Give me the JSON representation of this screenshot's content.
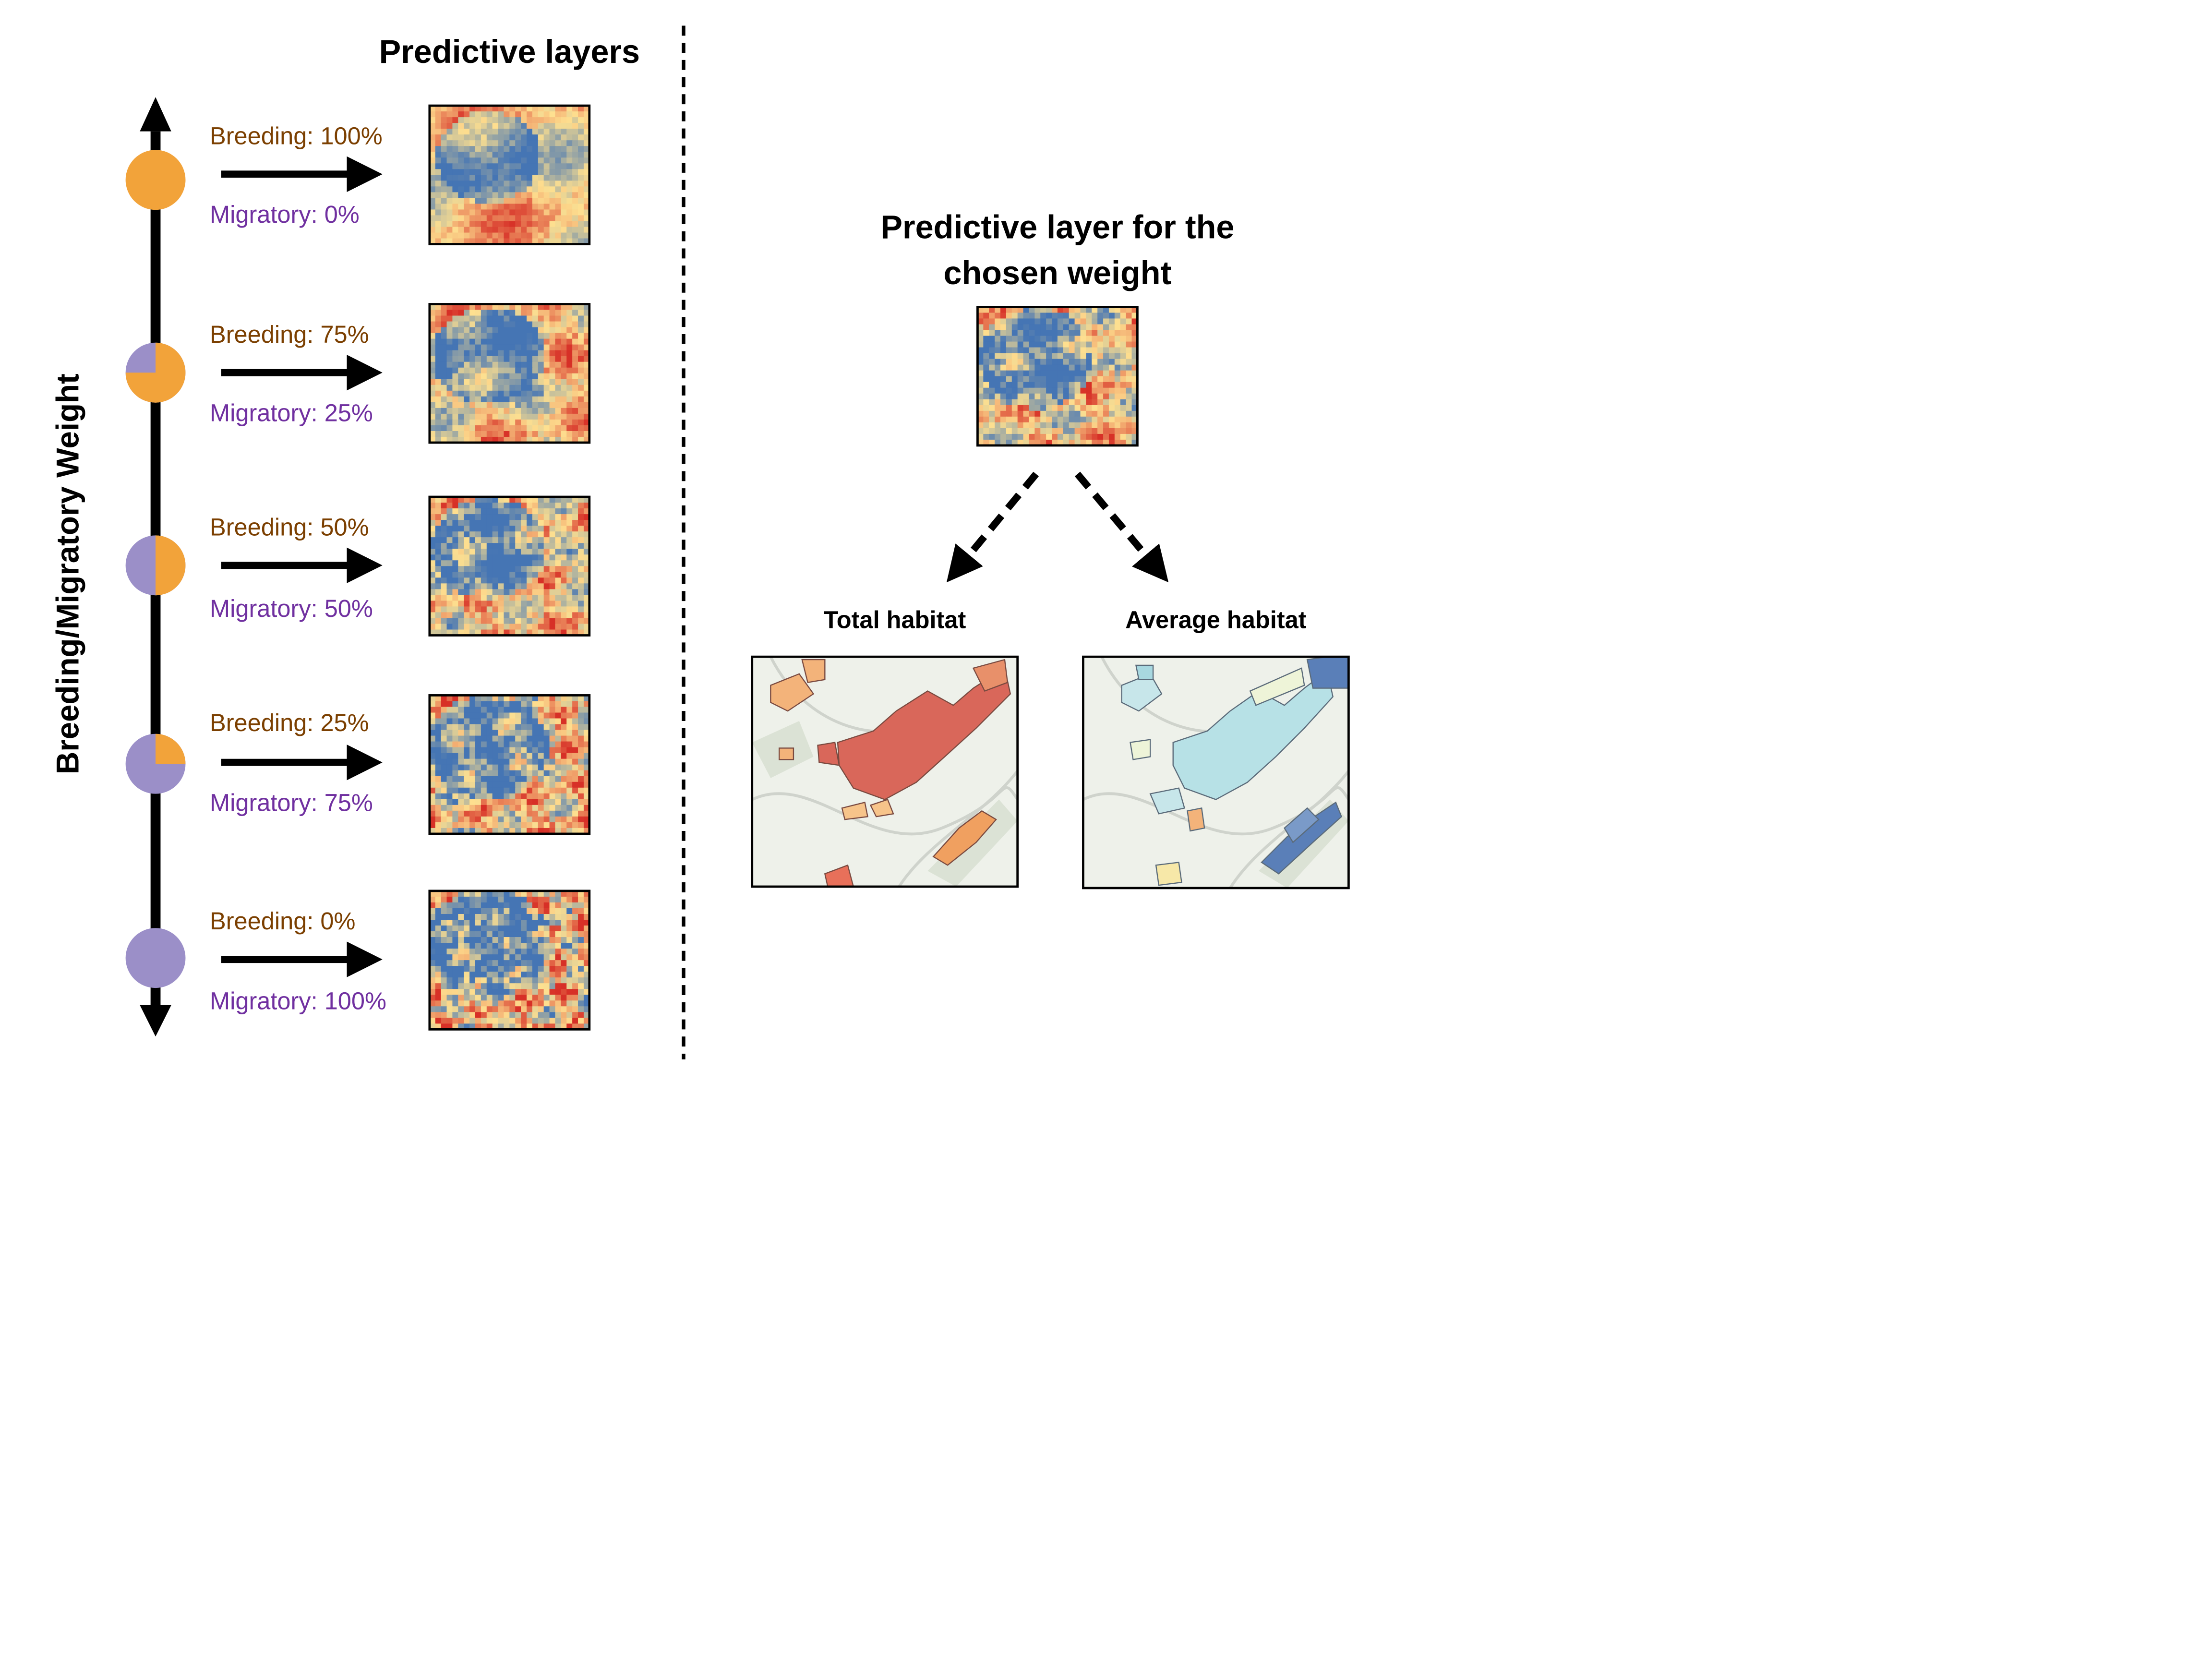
{
  "left_panel": {
    "title": "Predictive layers",
    "axis_label": "Breeding/Migratory Weight",
    "weights": [
      {
        "breeding_label": "Breeding: 100%",
        "migratory_label": "Migratory: 0%",
        "breeding_fraction": 1.0,
        "blue_share": 0.2
      },
      {
        "breeding_label": "Breeding: 75%",
        "migratory_label": "Migratory: 25%",
        "breeding_fraction": 0.75,
        "blue_share": 0.35
      },
      {
        "breeding_label": "Breeding: 50%",
        "migratory_label": "Migratory: 50%",
        "breeding_fraction": 0.5,
        "blue_share": 0.45
      },
      {
        "breeding_label": "Breeding: 25%",
        "migratory_label": "Migratory: 75%",
        "breeding_fraction": 0.25,
        "blue_share": 0.55
      },
      {
        "breeding_label": "Breeding: 0%",
        "migratory_label": "Migratory: 100%",
        "breeding_fraction": 0.0,
        "blue_share": 0.7
      }
    ]
  },
  "right_panel": {
    "chosen_title_line1": "Predictive layer for the",
    "chosen_title_line2": "chosen weight",
    "outputs": [
      {
        "title": "Total habitat"
      },
      {
        "title": "Average habitat"
      }
    ]
  },
  "colors": {
    "breeding": "#f2a33a",
    "migratory": "#9b8fc8",
    "breeding_text": "#7b3f00",
    "migratory_text": "#7030a0",
    "heat_high": "#d73027",
    "heat_mid": "#fee090",
    "heat_low": "#4575b4",
    "habitat_total": "#d9534f",
    "habitat_total_light": "#f0a060",
    "habitat_average": "#a8d8e0",
    "habitat_average_dark": "#5a7fb8"
  }
}
